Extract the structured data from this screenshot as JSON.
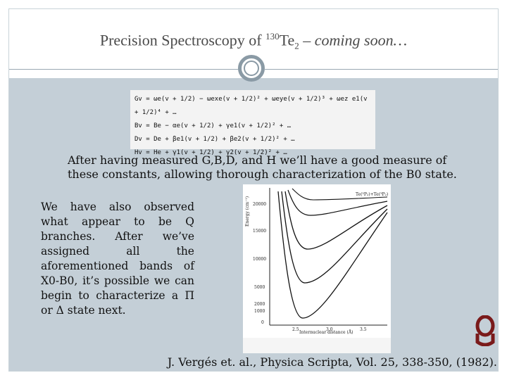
{
  "slide": {
    "title_prefix": "Precision Spectroscopy of ",
    "title_isotope": "130",
    "title_element": "Te",
    "title_subscript": "2",
    "title_suffix": " – coming soon…",
    "equations": [
      "Gv = ωe(v + 1/2) − ωexe(v + 1/2)² + ωeye(v + 1/2)³ + ωez e1(v + 1/2)⁴ + …",
      "Bv = Be − αe(v + 1/2) + γe1(v + 1/2)² + …",
      "Dv = De + βe1(v + 1/2) + βe2(v + 1/2)² + …",
      "Hv = He + γ1(v + 1/2) + γ2(v + 1/2)² + …"
    ],
    "paragraph1": "After having measured G,B,D, and H we’ll have a good measure of these constants, allowing thorough characterization of the B0 state.",
    "paragraph2": "We have also observed what appear to be Q branches. After we’ve assigned all the aforementioned bands of X0-B0, it’s possible we can begin to characterize a Π or Δ state next.",
    "citation": "J. Vergés et. al., Physica Scripta, Vol. 25, 338-350, (1982).",
    "figure_ylabel": "Energy (cm⁻¹)",
    "figure_xlabel": "Internuclear distance (Å)",
    "figure_corner_label": "Te(³P₂)+Te(³P₂)",
    "figure_yticks": [
      "20000",
      "15000",
      "10000",
      "5000",
      "2000",
      "1000",
      "0"
    ],
    "figure_xticks": [
      "2.5",
      "3.0",
      "3.5"
    ]
  },
  "colors": {
    "panel": "#c4cfd7",
    "accent": "#8a9aa5",
    "logo": "#7a1a1a"
  }
}
